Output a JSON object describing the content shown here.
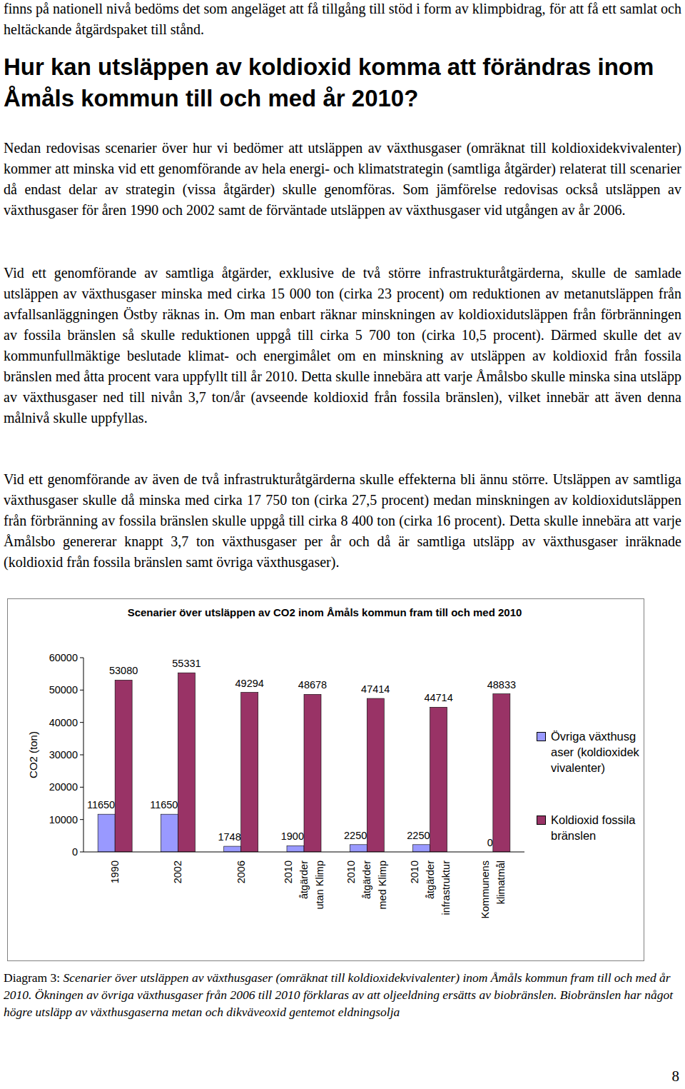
{
  "page": {
    "paragraphs": [
      "finns på nationell nivå bedöms det som angeläget att få tillgång till stöd i form av klimpbidrag, för att få ett samlat och heltäckande åtgärdspaket till stånd.",
      "Nedan redovisas scenarier över hur vi bedömer att utsläppen av växthusgaser (omräknat till koldioxidekvivalenter) kommer att minska vid ett genomförande av hela energi- och klimatstrategin (samtliga åtgärder) relaterat till scenarier då endast delar av strategin (vissa åtgärder) skulle genomföras. Som jämförelse redovisas också utsläppen av växthusgaser för åren 1990 och 2002 samt de förväntade utsläppen av växthusgaser vid utgången av år 2006.",
      "Vid ett genomförande av samtliga åtgärder, exklusive de två större infrastrukturåtgärderna, skulle de samlade utsläppen av växthusgaser minska med cirka 15 000 ton (cirka 23 procent) om reduktionen av metanutsläppen från avfallsanläggningen Östby räknas in. Om man enbart räknar minskningen av koldioxidutsläppen från förbränningen av fossila bränslen så skulle reduktionen uppgå till cirka 5 700 ton (cirka 10,5 procent). Därmed skulle det av kommunfullmäktige beslutade klimat- och energimålet om en minskning av utsläppen av koldioxid från fossila bränslen med åtta procent vara uppfyllt till år 2010. Detta skulle innebära att varje Åmålsbo skulle minska sina utsläpp av växthusgaser ned till nivån 3,7 ton/år (avseende koldioxid från fossila bränslen), vilket innebär att även denna målnivå skulle uppfyllas.",
      "Vid ett genomförande av även de två infrastrukturåtgärderna skulle effekterna bli ännu större. Utsläppen av samtliga växthusgaser skulle då minska med cirka 17 750 ton (cirka 27,5 procent) medan minskningen av koldioxidutsläppen från förbränning av fossila bränslen skulle uppgå till cirka 8 400 ton (cirka 16 procent). Detta skulle innebära att varje Åmålsbo genererar knappt 3,7 ton växthusgaser per år och då är samtliga utsläpp av växthusgaser inräknade (koldioxid från fossila bränslen samt övriga växthusgaser)."
    ],
    "heading": "Hur kan utsläppen av koldioxid komma att förändras inom Åmåls kommun till och med år 2010?",
    "caption_label": "Diagram 3:",
    "caption_text": "Scenarier över utsläppen av växthusgaser (omräknat till koldioxidekvivalenter) inom Åmåls kommun fram till och med år 2010. Ökningen av övriga växthusgaser från 2006 till 2010 förklaras av att oljeeldning ersätts av biobränslen. Biobränslen har något högre utsläpp av växthusgaserna metan och dikväveoxid gentemot eldningsolja",
    "page_number": "8"
  },
  "chart_data": {
    "type": "bar",
    "title": "Scenarier över utsläppen av CO2 inom Åmåls kommun fram till och med 2010",
    "y_label": "CO2 (ton)",
    "categories": [
      "1990",
      "2002",
      "2006",
      "2010\nåtgärder\nutan Klimp",
      "2010\nåtgärder\nmed Klimp",
      "2010\nåtgärder\ninfrastruktur",
      "Kommunens\nklimatmål"
    ],
    "series": [
      {
        "name": "Övriga växthusgaser (koldioxidekvivalenter)",
        "color": "#9999ff",
        "values": [
          11650,
          11650,
          1748,
          1900,
          2250,
          2250,
          0
        ]
      },
      {
        "name": "Koldioxid fossila bränslen",
        "color": "#993366",
        "values": [
          53080,
          55331,
          49294,
          48678,
          47414,
          44714,
          48833
        ]
      }
    ],
    "ylim": [
      0,
      60000
    ],
    "yticks": [
      0,
      10000,
      20000,
      30000,
      40000,
      50000,
      60000
    ],
    "grid": false,
    "legend": "right",
    "data_labels": true
  }
}
